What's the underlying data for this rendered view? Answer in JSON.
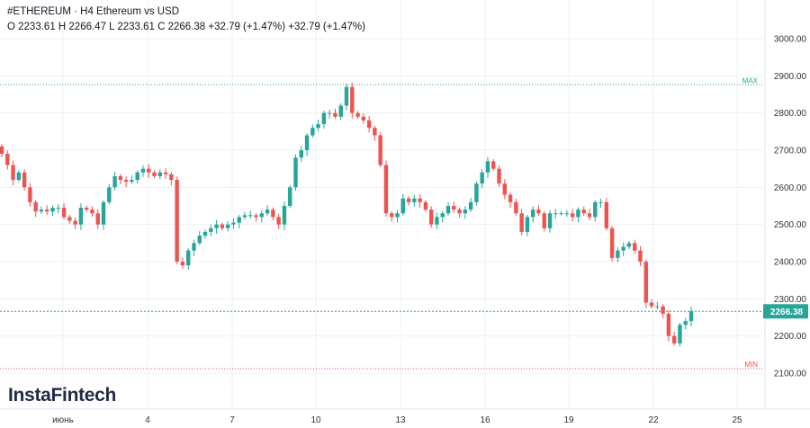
{
  "header": {
    "title": "#ETHEREUM · H4 Ethereum vs USD",
    "ohlc": "O 2233.61 H 2266.47 L 2233.61 C 2266.38 +32.79 (+1.47%) +32.79 (+1.47%)"
  },
  "logo": "InstaFintech",
  "colors": {
    "up": "#26a69a",
    "down": "#ef5350",
    "price_line": "#26a69a",
    "max_line": "#26a69a",
    "min_line": "#ef5350"
  },
  "chart_data": {
    "type": "candlestick",
    "title": "#ETHEREUM · H4 Ethereum vs USD",
    "xlabel": "",
    "ylabel": "",
    "ylim": [
      2065,
      3040
    ],
    "yticks": [
      "3000.00",
      "2900.00",
      "2800.00",
      "2700.00",
      "2600.00",
      "2500.00",
      "2400.00",
      "2300.00",
      "2200.00",
      "2100.00"
    ],
    "xlim": [
      0,
      860
    ],
    "xticks": [
      {
        "label": "июнь",
        "x": 70
      },
      {
        "label": "4",
        "x": 164
      },
      {
        "label": "7",
        "x": 258
      },
      {
        "label": "10",
        "x": 351
      },
      {
        "label": "13",
        "x": 445
      },
      {
        "label": "16",
        "x": 539
      },
      {
        "label": "19",
        "x": 632
      },
      {
        "label": "22",
        "x": 726
      },
      {
        "label": "25",
        "x": 819
      }
    ],
    "last_price": 2266.38,
    "last_price_label": "2266.38",
    "max_price": 2876,
    "max_label": "MAX",
    "min_price": 2112,
    "min_label": "MIN",
    "grid": true,
    "closes": [
      2690,
      2660,
      2620,
      2640,
      2600,
      2560,
      2535,
      2540,
      2535,
      2545,
      2545,
      2520,
      2510,
      2500,
      2545,
      2540,
      2530,
      2500,
      2560,
      2600,
      2630,
      2620,
      2615,
      2620,
      2640,
      2650,
      2640,
      2630,
      2640,
      2635,
      2620,
      2400,
      2390,
      2430,
      2450,
      2470,
      2480,
      2490,
      2500,
      2490,
      2500,
      2505,
      2520,
      2525,
      2525,
      2520,
      2530,
      2540,
      2520,
      2500,
      2550,
      2600,
      2680,
      2700,
      2740,
      2760,
      2770,
      2800,
      2800,
      2790,
      2820,
      2870,
      2800,
      2790,
      2780,
      2760,
      2740,
      2660,
      2530,
      2520,
      2530,
      2570,
      2560,
      2570,
      2560,
      2540,
      2500,
      2520,
      2530,
      2550,
      2540,
      2530,
      2540,
      2560,
      2610,
      2640,
      2670,
      2650,
      2610,
      2580,
      2560,
      2530,
      2480,
      2520,
      2540,
      2530,
      2490,
      2530,
      2530,
      2530,
      2530,
      2520,
      2540,
      2530,
      2520,
      2560,
      2560,
      2490,
      2410,
      2430,
      2440,
      2450,
      2430,
      2400,
      2290,
      2280,
      2280,
      2260,
      2200,
      2180,
      2230,
      2240,
      2266.38
    ]
  }
}
